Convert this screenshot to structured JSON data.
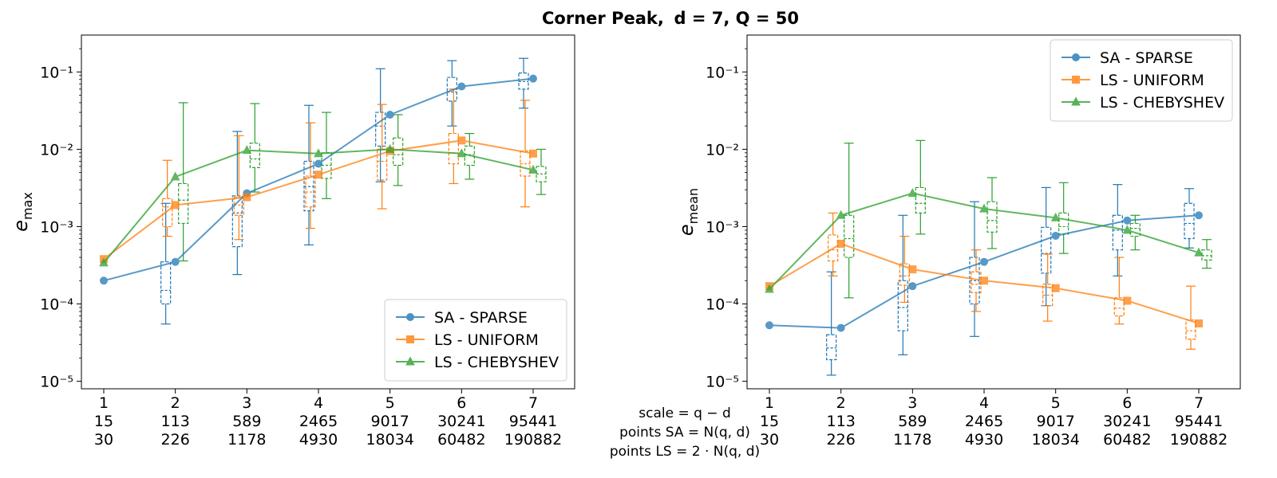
{
  "figure": {
    "title_bold": "Corner Peak,",
    "title_rest": "d = 7, Q = 50"
  },
  "center_labels": [
    "scale = q − d",
    "points SA = N(q, d)",
    "points LS = 2 · N(q, d)"
  ],
  "chart_data": [
    {
      "type": "line",
      "yscale": "log",
      "ylim": [
        1e-05,
        0.3
      ],
      "ylabel": "e_max",
      "ytick_labels": [
        "10⁻⁵",
        "10⁻⁴",
        "10⁻³",
        "10⁻²",
        "10⁻¹"
      ],
      "ytick_values": [
        1e-05,
        0.0001,
        0.001,
        0.01,
        0.1
      ],
      "x": [
        1,
        2,
        3,
        4,
        5,
        6,
        7
      ],
      "x_tick_rows": [
        [
          "1",
          "2",
          "3",
          "4",
          "5",
          "6",
          "7"
        ],
        [
          "15",
          "113",
          "589",
          "2465",
          "9017",
          "30241",
          "95441"
        ],
        [
          "30",
          "226",
          "1178",
          "4930",
          "18034",
          "60482",
          "190882"
        ]
      ],
      "legend_position": "lower-right",
      "series": [
        {
          "name": "SA - SPARSE",
          "color": "#1f77b4",
          "marker": "circle",
          "values": [
            0.0002,
            0.00035,
            0.0027,
            0.0065,
            0.028,
            0.065,
            0.082
          ],
          "boxes": [
            null,
            {
              "whislo": 5.5e-05,
              "q1": 0.0001,
              "med": 0.00015,
              "q3": 0.00035,
              "whishi": 0.002
            },
            {
              "whislo": 0.00024,
              "q1": 0.00055,
              "med": 0.0015,
              "q3": 0.0025,
              "whishi": 0.017
            },
            {
              "whislo": 0.00058,
              "q1": 0.0016,
              "med": 0.0033,
              "q3": 0.007,
              "whishi": 0.037
            },
            {
              "whislo": 0.0038,
              "q1": 0.011,
              "med": 0.02,
              "q3": 0.03,
              "whishi": 0.11
            },
            {
              "whislo": 0.02,
              "q1": 0.042,
              "med": 0.055,
              "q3": 0.085,
              "whishi": 0.14
            },
            {
              "whislo": 0.034,
              "q1": 0.06,
              "med": 0.075,
              "q3": 0.097,
              "whishi": 0.15
            }
          ]
        },
        {
          "name": "LS - UNIFORM",
          "color": "#ff7f0e",
          "marker": "square",
          "values": [
            0.00038,
            0.0019,
            0.0024,
            0.0047,
            0.0095,
            0.013,
            0.0088
          ],
          "boxes": [
            null,
            {
              "whislo": 0.00075,
              "q1": 0.001,
              "med": 0.0018,
              "q3": 0.0023,
              "whishi": 0.0072
            },
            {
              "whislo": 0.00068,
              "q1": 0.0014,
              "med": 0.0019,
              "q3": 0.0024,
              "whishi": 0.015
            },
            {
              "whislo": 0.00095,
              "q1": 0.0018,
              "med": 0.0028,
              "q3": 0.0045,
              "whishi": 0.022
            },
            {
              "whislo": 0.0017,
              "q1": 0.004,
              "med": 0.007,
              "q3": 0.01,
              "whishi": 0.038
            },
            {
              "whislo": 0.0036,
              "q1": 0.0065,
              "med": 0.009,
              "q3": 0.016,
              "whishi": 0.06
            },
            {
              "whislo": 0.0018,
              "q1": 0.0045,
              "med": 0.0065,
              "q3": 0.0095,
              "whishi": 0.043
            }
          ]
        },
        {
          "name": "LS - CHEBYSHEV",
          "color": "#2ca02c",
          "marker": "triangle",
          "values": [
            0.00034,
            0.0044,
            0.0097,
            0.0088,
            0.01,
            0.0088,
            0.0054
          ],
          "boxes": [
            null,
            {
              "whislo": 0.00036,
              "q1": 0.0011,
              "med": 0.0022,
              "q3": 0.0036,
              "whishi": 0.04
            },
            {
              "whislo": 0.0028,
              "q1": 0.0058,
              "med": 0.0075,
              "q3": 0.012,
              "whishi": 0.039
            },
            {
              "whislo": 0.0023,
              "q1": 0.0042,
              "med": 0.0062,
              "q3": 0.009,
              "whishi": 0.03
            },
            {
              "whislo": 0.0034,
              "q1": 0.0062,
              "med": 0.0085,
              "q3": 0.014,
              "whishi": 0.028
            },
            {
              "whislo": 0.0041,
              "q1": 0.0062,
              "med": 0.0085,
              "q3": 0.011,
              "whishi": 0.016
            },
            {
              "whislo": 0.0026,
              "q1": 0.0038,
              "med": 0.0048,
              "q3": 0.006,
              "whishi": 0.01
            }
          ]
        }
      ]
    },
    {
      "type": "line",
      "yscale": "log",
      "ylim": [
        1e-05,
        0.3
      ],
      "ylabel": "e_mean",
      "ytick_labels": [
        "10⁻⁵",
        "10⁻⁴",
        "10⁻³",
        "10⁻²",
        "10⁻¹"
      ],
      "ytick_values": [
        1e-05,
        0.0001,
        0.001,
        0.01,
        0.1
      ],
      "x": [
        1,
        2,
        3,
        4,
        5,
        6,
        7
      ],
      "x_tick_rows": [
        [
          "1",
          "2",
          "3",
          "4",
          "5",
          "6",
          "7"
        ],
        [
          "15",
          "113",
          "589",
          "2465",
          "9017",
          "30241",
          "95441"
        ],
        [
          "30",
          "226",
          "1178",
          "4930",
          "18034",
          "60482",
          "190882"
        ]
      ],
      "legend_position": "upper-right",
      "series": [
        {
          "name": "SA - SPARSE",
          "color": "#1f77b4",
          "marker": "circle",
          "values": [
            5.3e-05,
            4.9e-05,
            0.00017,
            0.00035,
            0.00076,
            0.0012,
            0.0014
          ],
          "boxes": [
            null,
            {
              "whislo": 1.2e-05,
              "q1": 1.9e-05,
              "med": 2.7e-05,
              "q3": 4e-05,
              "whishi": 0.00026
            },
            {
              "whislo": 2.2e-05,
              "q1": 4.5e-05,
              "med": 9e-05,
              "q3": 0.0002,
              "whishi": 0.0014
            },
            {
              "whislo": 3.8e-05,
              "q1": 0.0001,
              "med": 0.0002,
              "q3": 0.0004,
              "whishi": 0.0021
            },
            {
              "whislo": 9.5e-05,
              "q1": 0.00025,
              "med": 0.00045,
              "q3": 0.00098,
              "whishi": 0.0032
            },
            {
              "whislo": 0.00023,
              "q1": 0.0005,
              "med": 0.0009,
              "q3": 0.0014,
              "whishi": 0.0035
            },
            {
              "whislo": 0.00053,
              "q1": 0.0007,
              "med": 0.0011,
              "q3": 0.002,
              "whishi": 0.0031
            }
          ]
        },
        {
          "name": "LS - UNIFORM",
          "color": "#ff7f0e",
          "marker": "square",
          "values": [
            0.00017,
            0.0006,
            0.00028,
            0.0002,
            0.00016,
            0.00011,
            5.6e-05
          ],
          "boxes": [
            null,
            {
              "whislo": 0.00023,
              "q1": 0.00036,
              "med": 0.0005,
              "q3": 0.00078,
              "whishi": 0.0015
            },
            {
              "whislo": 0.000105,
              "q1": 0.000175,
              "med": 0.00023,
              "q3": 0.00033,
              "whishi": 0.00075
            },
            {
              "whislo": 8e-05,
              "q1": 0.00014,
              "med": 0.00018,
              "q3": 0.00026,
              "whishi": 0.0005
            },
            {
              "whislo": 6e-05,
              "q1": 9.5e-05,
              "med": 0.00013,
              "q3": 0.00018,
              "whishi": 0.00044
            },
            {
              "whislo": 5.5e-05,
              "q1": 7e-05,
              "med": 8.8e-05,
              "q3": 0.00012,
              "whishi": 0.0004
            },
            {
              "whislo": 2.6e-05,
              "q1": 3.5e-05,
              "med": 4.5e-05,
              "q3": 6.2e-05,
              "whishi": 0.00017
            }
          ]
        },
        {
          "name": "LS - CHEBYSHEV",
          "color": "#2ca02c",
          "marker": "triangle",
          "values": [
            0.000155,
            0.0014,
            0.0027,
            0.0017,
            0.0013,
            0.0009,
            0.00046
          ],
          "boxes": [
            null,
            {
              "whislo": 0.00012,
              "q1": 0.0004,
              "med": 0.0007,
              "q3": 0.0014,
              "whishi": 0.012
            },
            {
              "whislo": 0.0008,
              "q1": 0.0015,
              "med": 0.002,
              "q3": 0.0032,
              "whishi": 0.013
            },
            {
              "whislo": 0.00052,
              "q1": 0.00085,
              "med": 0.0012,
              "q3": 0.0021,
              "whishi": 0.0043
            },
            {
              "whislo": 0.00045,
              "q1": 0.0008,
              "med": 0.001,
              "q3": 0.0015,
              "whishi": 0.0037
            },
            {
              "whislo": 0.0005,
              "q1": 0.00075,
              "med": 0.00095,
              "q3": 0.0011,
              "whishi": 0.0014
            },
            {
              "whislo": 0.00029,
              "q1": 0.00037,
              "med": 0.00042,
              "q3": 0.0005,
              "whishi": 0.00068
            }
          ]
        }
      ]
    }
  ]
}
